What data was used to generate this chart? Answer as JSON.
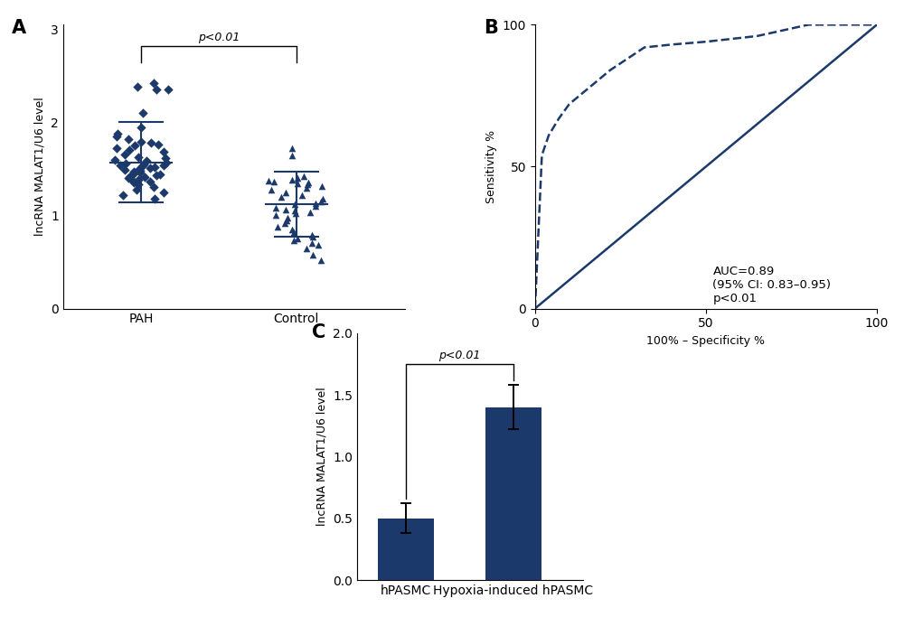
{
  "color": "#1b3a6b",
  "panel_A": {
    "label": "A",
    "pah_mean": 1.57,
    "pah_sd": 0.43,
    "control_mean": 1.12,
    "control_sd": 0.35,
    "ylabel": "lncRNA MALAT1/U6 level",
    "xtick_labels": [
      "PAH",
      "Control"
    ],
    "ylim": [
      0,
      3
    ],
    "yticks": [
      0,
      1,
      2,
      3
    ],
    "pvalue_text": "p<0.01",
    "pah_points": [
      1.88,
      2.35,
      2.38,
      2.42,
      2.35,
      2.1,
      1.95,
      1.85,
      1.82,
      1.79,
      1.78,
      1.76,
      1.75,
      1.72,
      1.7,
      1.68,
      1.66,
      1.63,
      1.62,
      1.6,
      1.59,
      1.57,
      1.56,
      1.55,
      1.54,
      1.54,
      1.53,
      1.52,
      1.51,
      1.5,
      1.49,
      1.48,
      1.47,
      1.46,
      1.45,
      1.44,
      1.43,
      1.42,
      1.41,
      1.4,
      1.38,
      1.37,
      1.36,
      1.35,
      1.33,
      1.31,
      1.28,
      1.25,
      1.22,
      1.18
    ],
    "ctrl_points": [
      1.72,
      1.65,
      1.42,
      1.4,
      1.38,
      1.37,
      1.36,
      1.35,
      1.34,
      1.33,
      1.32,
      1.3,
      1.28,
      1.25,
      1.22,
      1.2,
      1.18,
      1.15,
      1.13,
      1.12,
      1.1,
      1.08,
      1.06,
      1.05,
      1.03,
      1.02,
      1.0,
      0.98,
      0.95,
      0.92,
      0.88,
      0.85,
      0.82,
      0.79,
      0.77,
      0.75,
      0.73,
      0.7,
      0.68,
      0.65,
      0.58,
      0.52
    ]
  },
  "panel_B": {
    "label": "B",
    "xlabel": "100% – Specificity %",
    "ylabel": "Sensitivity %",
    "auc_text": "AUC=0.89\n(95% CI: 0.83–0.95)\np<0.01",
    "roc_x": [
      0,
      2,
      4,
      7,
      10,
      14,
      18,
      22,
      27,
      32,
      40,
      50,
      65,
      80,
      90,
      100
    ],
    "roc_y": [
      0,
      54,
      61,
      67,
      72,
      76,
      80,
      84,
      88,
      92,
      93,
      94,
      96,
      100,
      100,
      100
    ],
    "xlim": [
      0,
      100
    ],
    "ylim": [
      0,
      100
    ],
    "xticks": [
      0,
      50,
      100
    ],
    "yticks": [
      0,
      50,
      100
    ]
  },
  "panel_C": {
    "label": "C",
    "bar_values": [
      0.5,
      1.4
    ],
    "bar_errors": [
      0.12,
      0.18
    ],
    "bar_labels": [
      "hPASMC",
      "Hypoxia-induced hPASMC"
    ],
    "ylabel": "lncRNA MALAT1/U6 level",
    "ylim": [
      0,
      2.0
    ],
    "yticks": [
      0.0,
      0.5,
      1.0,
      1.5,
      2.0
    ],
    "pvalue_text": "p<0.01"
  }
}
